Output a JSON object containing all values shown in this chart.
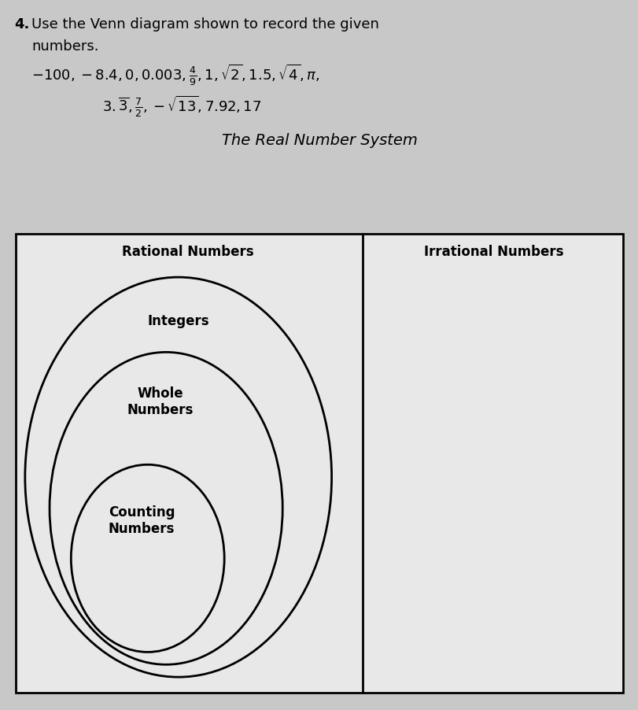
{
  "diagram_title": "The Real Number System",
  "label_rational": "Rational Numbers",
  "label_irrational": "Irrational Numbers",
  "label_integers": "Integers",
  "label_whole": "Whole\nNumbers",
  "label_counting": "Counting\nNumbers",
  "fig_bg": "#c8c8c8",
  "box_facecolor": "#e8e8e8",
  "text_bg": "#d8d8d8",
  "line1_math": "$-100, -8.4, 0, 0.003, \\frac{4}{9}, 1, \\sqrt{2}, 1.5, \\sqrt{4}, \\pi,$",
  "line2_math": "$3.\\overline{3}, \\frac{7}{2}, -\\sqrt{13}, 7.92, 17$",
  "title_fontsize": 13,
  "diagram_title_fontsize": 14,
  "label_fontsize": 12
}
